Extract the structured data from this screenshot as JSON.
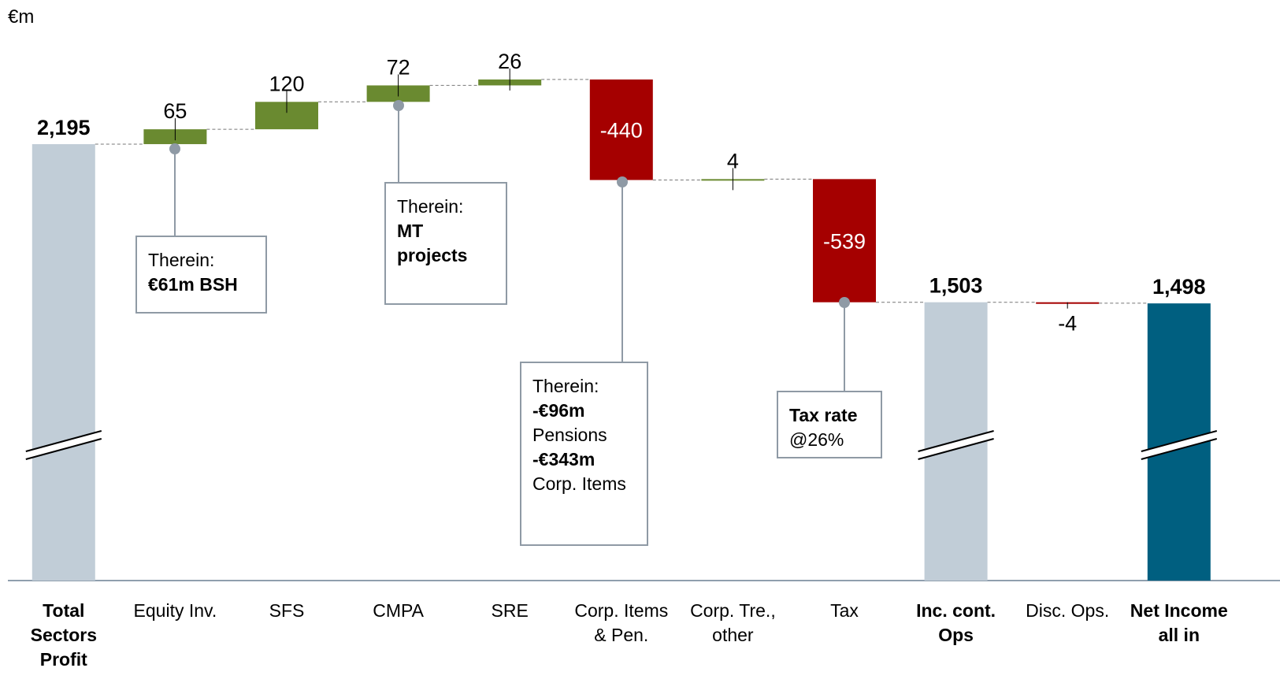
{
  "chart_data": {
    "type": "waterfall",
    "unit_label": "€m",
    "categories": [
      "Total Sectors Profit",
      "Equity Inv.",
      "SFS",
      "CMPA",
      "SRE",
      "Corp. Items & Pen.",
      "Corp. Tre., other",
      "Tax",
      "Inc. cont. Ops",
      "Disc. Ops.",
      "Net Income all in"
    ],
    "values": [
      2195,
      65,
      120,
      72,
      26,
      -440,
      4,
      -539,
      1503,
      -4,
      1498
    ],
    "value_labels": [
      "2,195",
      "65",
      "120",
      "72",
      "26",
      "-440",
      "4",
      "-539",
      "1,503",
      "-4",
      "1,498"
    ],
    "total_indices": [
      0,
      8,
      10
    ],
    "colors": [
      "#c1cdd7",
      "#6a8a30",
      "#6a8a30",
      "#6a8a30",
      "#6a8a30",
      "#a50000",
      "#6a8a30",
      "#a50000",
      "#c1cdd7",
      "#a50000",
      "#005f80"
    ],
    "ylim": [
      285,
      2550
    ],
    "annotations": [
      {
        "category_index": 1,
        "lines": [
          {
            "text": "Therein:"
          },
          {
            "text": "€61m BSH",
            "bold": true
          }
        ]
      },
      {
        "category_index": 3,
        "lines": [
          {
            "text": "Therein:"
          },
          {
            "text": "MT",
            "bold": true
          },
          {
            "text": "projects",
            "bold": true
          }
        ]
      },
      {
        "category_index": 5,
        "lines": [
          {
            "text": "Therein:"
          },
          {
            "text": "-€96m",
            "bold": true
          },
          {
            "text": "Pensions"
          },
          {
            "text": "-€343m",
            "bold": true
          },
          {
            "text": "Corp. Items"
          }
        ]
      },
      {
        "category_index": 7,
        "lines": [
          {
            "text": "Tax rate",
            "bold": true
          },
          {
            "text": "@26%"
          }
        ]
      }
    ]
  }
}
